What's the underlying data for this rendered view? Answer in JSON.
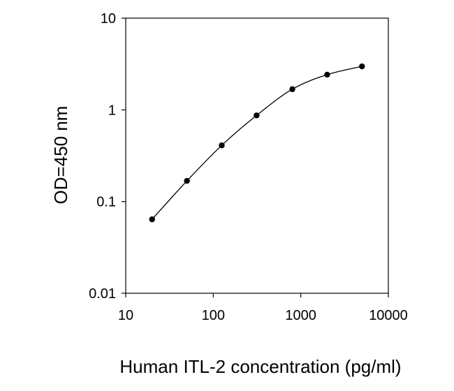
{
  "chart_data": {
    "type": "line",
    "title": "",
    "xlabel": "Human ITL-2 concentration (pg/ml)",
    "ylabel": "OD=450 nm",
    "x_scale": "log",
    "y_scale": "log",
    "xlim": [
      10,
      10000
    ],
    "ylim": [
      0.01,
      10
    ],
    "x_ticks": [
      "10",
      "100",
      "1000",
      "10000"
    ],
    "y_ticks": [
      "0.01",
      "0.1",
      "1",
      "10"
    ],
    "grid": false,
    "legend": "none",
    "series": [
      {
        "x": [
          20,
          50,
          125,
          312.5,
          800,
          2000,
          5000
        ],
        "y": [
          0.064,
          0.168,
          0.41,
          0.87,
          1.68,
          2.42,
          2.98
        ],
        "color": "#000000",
        "marker": "circle"
      }
    ]
  }
}
